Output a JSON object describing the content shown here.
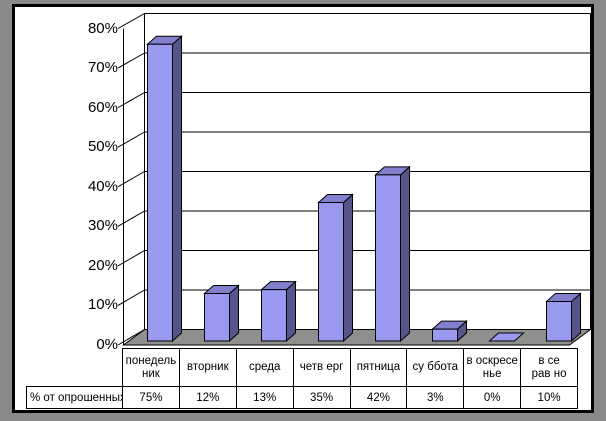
{
  "window": {
    "frame_color": "#8A8A8A",
    "canvas_color": "#FFFFFF",
    "border_color": "#000000"
  },
  "chart_data": {
    "type": "bar",
    "projection": "3d-column",
    "title": "",
    "xlabel": "",
    "ylabel": "",
    "categories": [
      "понедельник",
      "вторник",
      "среда",
      "четверг",
      "пятница",
      "суббота",
      "воскресенье",
      "все равно"
    ],
    "categories_display": [
      "понедель\nник",
      "вторник",
      "среда",
      "четв ерг",
      "пятница",
      "су ббота",
      "в оскресе\nнье",
      "в се\nрав но"
    ],
    "series": [
      {
        "name": "% от опрошенных",
        "values": [
          75,
          12,
          13,
          35,
          42,
          3,
          0,
          10
        ]
      }
    ],
    "value_labels": [
      "75%",
      "12%",
      "13%",
      "35%",
      "42%",
      "3%",
      "0%",
      "10%"
    ],
    "data_table_row_label": "% от опрошенных",
    "yticks": [
      "80%",
      "70%",
      "60%",
      "50%",
      "40%",
      "30%",
      "20%",
      "10%",
      "0%"
    ],
    "ylim": [
      0,
      80
    ],
    "grid": true,
    "legend_position": "none",
    "colors": {
      "bar_front": "#9999F0",
      "bar_top": "#8080CC",
      "bar_side": "#55558C",
      "floor": "#8F8F8F",
      "gridline": "#000000",
      "text": "#000000"
    }
  }
}
